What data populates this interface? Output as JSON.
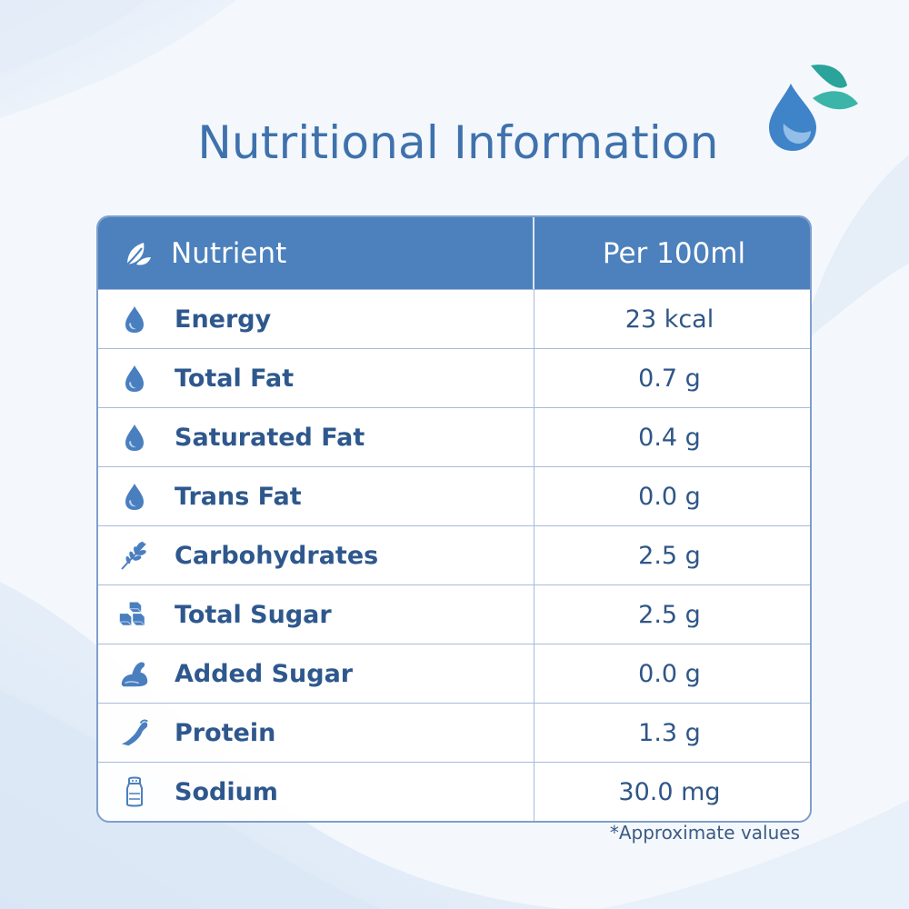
{
  "title": "Nutritional Information",
  "header": {
    "nutrient_label": "Nutrient",
    "per_label": "Per 100ml"
  },
  "rows": [
    {
      "icon": "drop-icon",
      "name": "Energy",
      "value": "23 kcal"
    },
    {
      "icon": "drop-icon",
      "name": "Total Fat",
      "value": "0.7 g"
    },
    {
      "icon": "drop-icon",
      "name": "Saturated Fat",
      "value": "0.4 g"
    },
    {
      "icon": "drop-icon",
      "name": "Trans Fat",
      "value": "0.0 g"
    },
    {
      "icon": "wheat-icon",
      "name": "Carbohydrates",
      "value": "2.5 g"
    },
    {
      "icon": "sugar-cubes-icon",
      "name": "Total Sugar",
      "value": "2.5 g"
    },
    {
      "icon": "muscle-arm-icon",
      "name": "Added Sugar",
      "value": "0.0 g"
    },
    {
      "icon": "bicep-icon",
      "name": "Protein",
      "value": "1.3 g"
    },
    {
      "icon": "salt-shaker-icon",
      "name": "Sodium",
      "value": "30.0 mg"
    }
  ],
  "footnote": "*Approximate values",
  "colors": {
    "header_bg": "#4c81bd",
    "title": "#3f72ad",
    "label": "#2e588d",
    "accent_leaf": "#2aa39a",
    "accent_drop": "#3f83c9"
  }
}
